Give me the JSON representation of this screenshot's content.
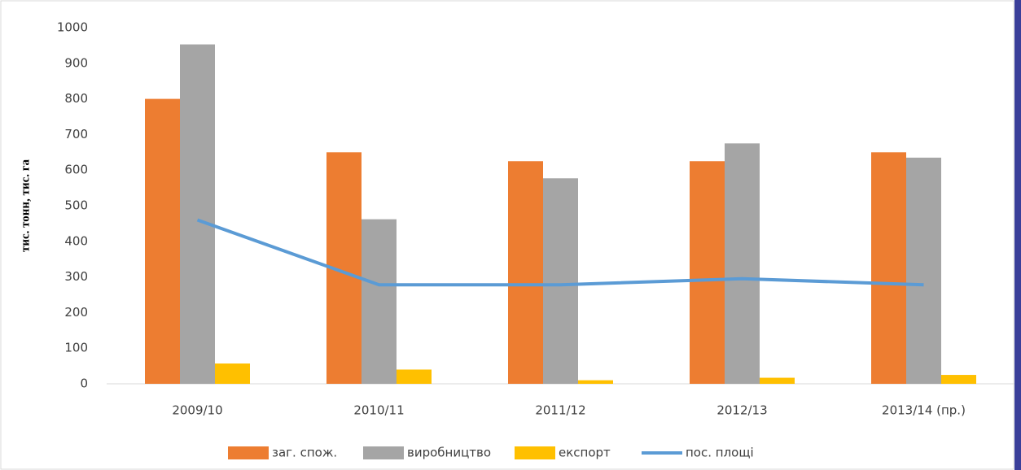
{
  "chart_data": {
    "type": "bar",
    "y_label": "тис. тонн, тис. га",
    "categories": [
      "2009/10",
      "2010/11",
      "2011/12",
      "2012/13",
      "2013/14 (пр.)"
    ],
    "series": [
      {
        "name": "заг. спож.",
        "color": "#ed7d31",
        "type": "bar",
        "values": [
          800,
          650,
          625,
          625,
          650
        ]
      },
      {
        "name": "виробництво",
        "color": "#a5a5a5",
        "type": "bar",
        "values": [
          953,
          462,
          577,
          675,
          635
        ]
      },
      {
        "name": "експорт",
        "color": "#ffc000",
        "type": "bar",
        "values": [
          57,
          40,
          10,
          17,
          25
        ]
      },
      {
        "name": "пос. площі",
        "color": "#5b9bd5",
        "type": "line",
        "values": [
          460,
          278,
          278,
          295,
          278
        ]
      }
    ],
    "ylim": [
      0,
      1000
    ],
    "yticks": [
      0,
      100,
      200,
      300,
      400,
      500,
      600,
      700,
      800,
      900,
      1000
    ],
    "grid": false,
    "legend": "bottom"
  }
}
